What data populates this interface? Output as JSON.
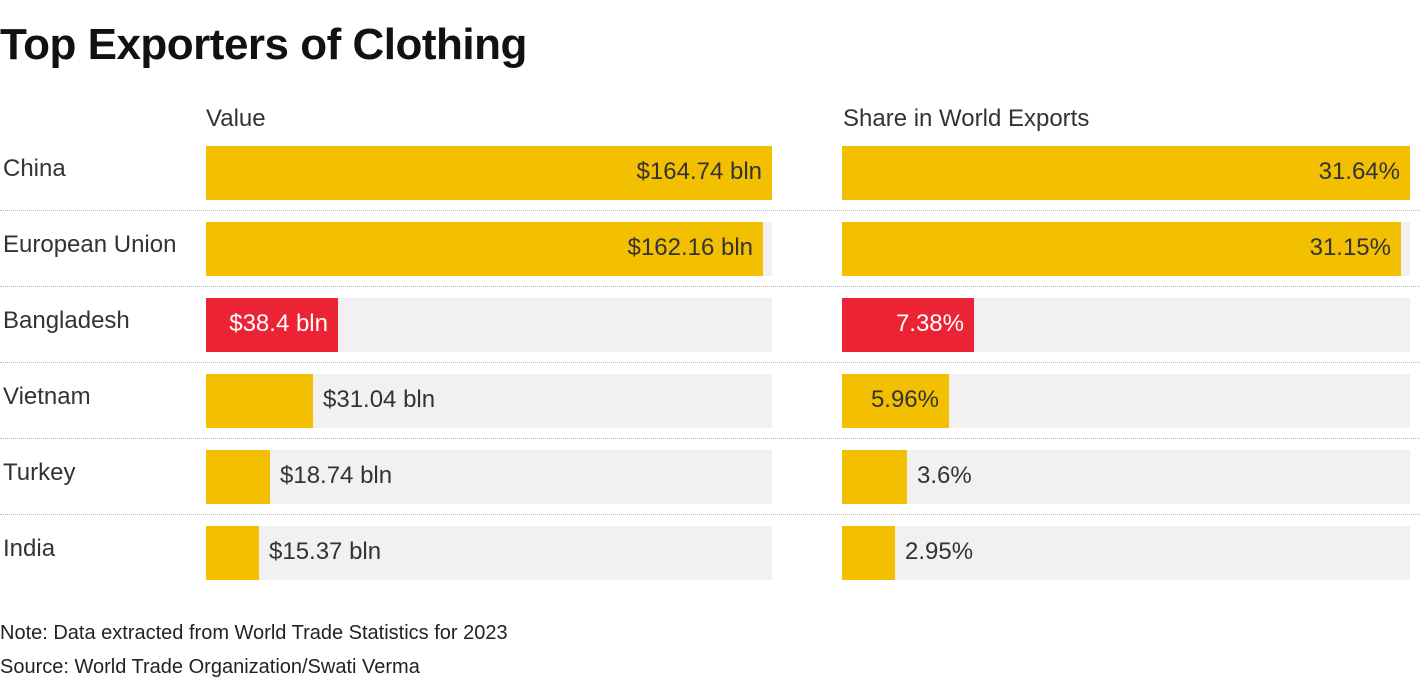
{
  "chart_data": {
    "type": "bar",
    "title": "Top Exporters of Clothing",
    "categories": [
      "China",
      "European Union",
      "Bangladesh",
      "Vietnam",
      "Turkey",
      "India"
    ],
    "highlight": "Bangladesh",
    "series": [
      {
        "name": "Value",
        "values": [
          164.74,
          162.16,
          38.4,
          31.04,
          18.74,
          15.37
        ],
        "labels": [
          "$164.74 bln",
          "$162.16 bln",
          "$38.4 bln",
          "$31.04 bln",
          "$18.74 bln",
          "$15.37 bln"
        ],
        "xlim": [
          0,
          164.74
        ]
      },
      {
        "name": "Share in World Exports",
        "values": [
          31.64,
          31.15,
          7.38,
          5.96,
          3.6,
          2.95
        ],
        "labels": [
          "31.64%",
          "31.15%",
          "7.38%",
          "5.96%",
          "3.6%",
          "2.95%"
        ],
        "xlim": [
          0,
          31.64
        ]
      }
    ],
    "colors": {
      "bar": "#f2c000",
      "highlight": "#eb2334",
      "track": "#f1f1f1"
    }
  },
  "notes": {
    "note": "Note: Data extracted from World Trade Statistics for 2023",
    "source": "Source: World Trade Organization/Swati Verma"
  }
}
